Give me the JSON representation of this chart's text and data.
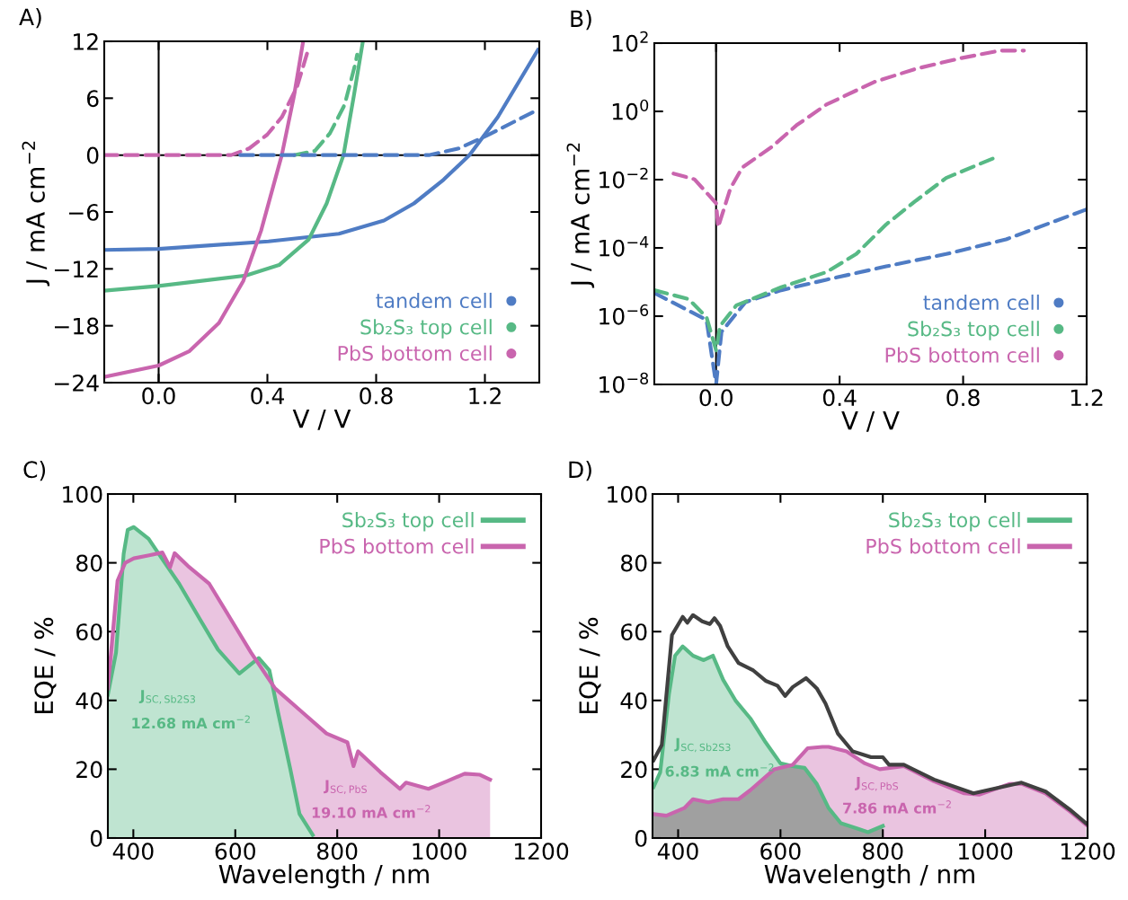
{
  "chart_data": [
    {
      "type": "line",
      "title": "A)",
      "xlabel": "V / V",
      "ylabel": "J / mA cm$^{−2}$",
      "xlim": [
        -0.2,
        1.4
      ],
      "xticks": [
        {
          "value": 0,
          "label": "0.0"
        },
        0.4,
        0.8,
        1.2
      ],
      "ylim": [
        -24,
        12
      ],
      "yticks": [
        {
          "value": -24,
          "label": "−24"
        },
        {
          "value": -18,
          "label": "−18"
        },
        {
          "value": -12,
          "label": "−12"
        },
        {
          "value": -6,
          "label": "−6"
        },
        0,
        6,
        12
      ],
      "legend": "bottom right",
      "grid": false,
      "ref_lines": [
        {
          "axis": "x",
          "value": 0,
          "color": "#000000"
        },
        {
          "axis": "y",
          "value": 0,
          "color": "#000000"
        }
      ],
      "series": [
        {
          "name": "tandem cell",
          "color": "#4f7cc4",
          "x": [
            -0.2,
            0,
            0.404,
            0.663,
            0.829,
            0.939,
            1.048,
            1.143,
            1.247,
            1.395
          ],
          "values": [
            -10,
            -9.9,
            -9.1,
            -8.3,
            -6.9,
            -5.1,
            -2.6,
            0,
            4.0,
            11.1
          ]
        },
        {
          "name": "Sb₂S₃ top cell",
          "color": "#57b985",
          "x": [
            -0.2,
            0,
            0.321,
            0.443,
            0.552,
            0.618,
            0.68,
            0.718,
            0.75
          ],
          "values": [
            -14.3,
            -13.8,
            -12.7,
            -11.6,
            -8.9,
            -5.1,
            0,
            6.25,
            11.8
          ]
        },
        {
          "name": "PbS bottom cell",
          "color": "#c965ae",
          "x": [
            -0.2,
            0,
            0.112,
            0.222,
            0.311,
            0.377,
            0.453,
            0.498,
            0.531
          ],
          "values": [
            -23.4,
            -22.2,
            -20.7,
            -17.7,
            -13.3,
            -7.95,
            0,
            6.25,
            11.9
          ]
        },
        {
          "color": "#c965ae",
          "line_style": "dashed",
          "x": [
            -0.2,
            0.267,
            0.333,
            0.399,
            0.453,
            0.509,
            0.552
          ],
          "values": [
            0,
            0,
            0.7,
            2.15,
            4.0,
            7.2,
            11.3
          ]
        },
        {
          "color": "#57b985",
          "line_style": "dashed",
          "x": [
            0.498,
            0.575,
            0.63,
            0.684,
            0.724,
            0.73
          ],
          "values": [
            0,
            0.45,
            2.3,
            5.3,
            9.7,
            10.6
          ]
        },
        {
          "color": "#4f7cc4",
          "line_style": "dashed",
          "x": [
            0.3,
            0.994,
            1.104,
            1.214,
            1.395
          ],
          "values": [
            0,
            0,
            0.7,
            2.15,
            4.8
          ]
        }
      ]
    },
    {
      "type": "line",
      "title": "B)",
      "xlabel": "V / V",
      "ylabel": "J / mA cm$^{−2}$",
      "log": "y",
      "xlim": [
        -0.2,
        1.2
      ],
      "xticks": [
        {
          "value": 0,
          "label": "0.0"
        },
        0.4,
        0.8,
        1.2
      ],
      "ylim": [
        1e-08,
        100
      ],
      "yticks": [
        {
          "value": 1e-08,
          "label": "10$^{−8}$"
        },
        {
          "value": 1e-06,
          "label": "10$^{−6}$"
        },
        {
          "value": 0.0001,
          "label": "10$^{−4}$"
        },
        {
          "value": 0.01,
          "label": "10$^{−2}$"
        },
        {
          "value": 1,
          "label": "10$^{0}$"
        },
        {
          "value": 100,
          "label": "10$^{2}$"
        }
      ],
      "legend": "bottom right",
      "grid": false,
      "ref_lines": [
        {
          "axis": "x",
          "value": 0,
          "color": "#000000"
        }
      ],
      "series": [
        {
          "name": "tandem cell",
          "color": "#4f7cc4",
          "line_style": "dashed",
          "x": [
            -0.2,
            -0.031,
            0,
            0.0175,
            0.095,
            0.211,
            0.357,
            0.551,
            0.745,
            0.939,
            1.2
          ],
          "values": [
            4.79e-06,
            7.76e-07,
            1e-08,
            3.47e-07,
            2.57e-06,
            5.75e-06,
            1.17e-05,
            2.88e-05,
            6.61e-05,
            0.000178,
            0.00135
          ]
        },
        {
          "name": "Sb₂S₃ top cell",
          "color": "#57b985",
          "line_style": "dashed",
          "x": [
            -0.2,
            -0.089,
            -0.031,
            0,
            0.0128,
            0.066,
            0.211,
            0.357,
            0.454,
            0.551,
            0.648,
            0.745,
            0.91
          ],
          "values": [
            5.75e-06,
            3.16e-06,
            9.33e-07,
            1e-07,
            5.13e-07,
            2.09e-06,
            7.08e-06,
            1.95e-05,
            6.61e-05,
            0.00049,
            0.00245,
            0.0112,
            0.0468
          ]
        },
        {
          "name": "PbS bottom cell",
          "color": "#c965ae",
          "line_style": "dashed",
          "x": [
            -0.138,
            -0.07,
            0,
            0.0067,
            0.0466,
            0.0854,
            0.182,
            0.26,
            0.357,
            0.512,
            0.648,
            0.793,
            0.919,
            0.997
          ],
          "values": [
            0.0151,
            0.0102,
            0.00204,
            0.000407,
            0.00562,
            0.0229,
            0.0933,
            0.389,
            1.58,
            7.24,
            17.8,
            36.3,
            60.3,
            60.3
          ]
        }
      ]
    },
    {
      "type": "area",
      "title": "C)",
      "xlabel": "Wavelength / nm",
      "ylabel": "EQE / %",
      "xlim": [
        350,
        1200
      ],
      "xticks": [
        400,
        600,
        800,
        1000,
        1200
      ],
      "ylim": [
        0,
        100
      ],
      "yticks": [
        0,
        20,
        40,
        60,
        80,
        100
      ],
      "legend": "top right",
      "grid": false,
      "annotations": [
        "J$_{SC,Sb2S3}$",
        "12.68 mA cm$^{−2}$",
        "J$_{SC,PbS}$",
        "19.10 mA cm$^{−2}$"
      ],
      "series": [
        {
          "name": "Sb₂S₃ top cell",
          "color": "#57b985",
          "x": [
            350,
            366,
            381,
            389,
            401,
            430,
            460,
            490,
            531,
            566,
            608,
            646,
            667,
            684,
            708,
            726,
            752
          ],
          "values": [
            41.7,
            53.9,
            82.6,
            89.6,
            90.4,
            87,
            80.4,
            73.9,
            63.5,
            54.8,
            47.8,
            52.3,
            48.7,
            36.5,
            20,
            7,
            0.9
          ]
        },
        {
          "name": "PbS bottom cell",
          "color": "#c965ae",
          "x": [
            350,
            369,
            384,
            401,
            431,
            457,
            472,
            481,
            507,
            549,
            590,
            631,
            678,
            732,
            779,
            820,
            832,
            841,
            885,
            923,
            935,
            979,
            1015,
            1050,
            1080,
            1100
          ],
          "values": [
            43.5,
            74.8,
            80,
            81.3,
            82.2,
            83,
            78.7,
            82.8,
            79.1,
            73.9,
            63.9,
            53.9,
            43.5,
            36.5,
            30.4,
            27.8,
            20.9,
            25.2,
            19.1,
            14.3,
            16.1,
            14.3,
            16.5,
            18.7,
            18.4,
            17
          ]
        }
      ]
    },
    {
      "type": "area",
      "title": "D)",
      "xlabel": "Wavelength / nm",
      "ylabel": "EQE / %",
      "xlim": [
        350,
        1200
      ],
      "xticks": [
        400,
        600,
        800,
        1000,
        1200
      ],
      "ylim": [
        0,
        100
      ],
      "yticks": [
        0,
        20,
        40,
        60,
        80,
        100
      ],
      "legend": "top right",
      "grid": false,
      "annotations": [
        "J$_{SC,Sb2S3}$",
        "6.83 mA cm$^{−2}$",
        "J$_{SC,PbS}$",
        "7.86 mA cm$^{−2}$"
      ],
      "series": [
        {
          "name": "Sb₂S₃ top cell",
          "color": "#57b985",
          "x": [
            352,
            365,
            382,
            394,
            409,
            429,
            450,
            468,
            488,
            512,
            541,
            571,
            600,
            624,
            647,
            671,
            694,
            718,
            753,
            771,
            800
          ],
          "values": [
            14.8,
            19.1,
            41.7,
            53,
            55.7,
            53,
            51.7,
            53,
            46,
            40,
            34.8,
            27.8,
            21.7,
            20.9,
            20.4,
            15.7,
            8.7,
            4.3,
            2.6,
            1.7,
            3.5
          ]
        },
        {
          "name": "PbS bottom cell",
          "color": "#c965ae",
          "x": [
            352,
            377,
            412,
            429,
            459,
            488,
            518,
            541,
            588,
            624,
            653,
            682,
            694,
            729,
            765,
            794,
            841,
            900,
            959,
            988,
            1047,
            1071,
            1118,
            1165,
            1197
          ],
          "values": [
            7,
            6.5,
            8.7,
            11.3,
            10.4,
            11.3,
            11.3,
            13.9,
            20,
            21.3,
            26.1,
            26.5,
            26.5,
            25.2,
            21.7,
            20,
            20.9,
            16.5,
            13,
            12.6,
            15.7,
            15.8,
            13,
            7.8,
            3.9
          ]
        },
        {
          "type": "area",
          "color": "#a0a0a0",
          "x": [
            352,
            377,
            412,
            429,
            459,
            488,
            518,
            541,
            588,
            600,
            624,
            647,
            671,
            694,
            718,
            753,
            771,
            800
          ],
          "values": [
            7,
            6.5,
            8.7,
            11.3,
            10.4,
            11.3,
            11.3,
            13.9,
            20,
            21,
            20.9,
            20.4,
            15.7,
            8.7,
            4.3,
            2.6,
            1.7,
            3.5
          ]
        },
        {
          "type": "line",
          "color": "#404040",
          "x": [
            352,
            368,
            388,
            409,
            418,
            429,
            447,
            462,
            471,
            482,
            497,
            518,
            547,
            571,
            594,
            609,
            624,
            650,
            671,
            688,
            712,
            741,
            777,
            800,
            812,
            841,
            900,
            977,
            1071,
            1118,
            1165,
            1197
          ],
          "values": [
            22.6,
            27,
            59,
            64.3,
            62.6,
            64.8,
            63,
            62.2,
            63.9,
            61.7,
            55.7,
            50.9,
            48.7,
            45.7,
            44.3,
            41.3,
            43.9,
            46.5,
            43.5,
            39.1,
            30.4,
            25.2,
            23.5,
            23.5,
            21.3,
            21.3,
            17,
            13,
            16.1,
            13.5,
            8.3,
            4.3
          ]
        }
      ]
    }
  ]
}
